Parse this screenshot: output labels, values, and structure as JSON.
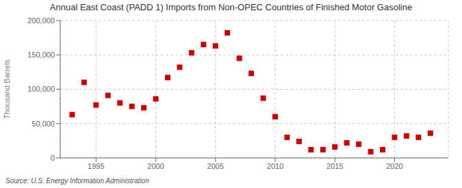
{
  "chart_data": {
    "type": "scatter",
    "title": "Annual East Coast (PADD 1) Imports from Non-OPEC Countries of Finished Motor Gasoline",
    "ylabel": "Thousand Barrels",
    "annotations": [
      "Source: U.S. Energy Information Administration"
    ],
    "x": [
      1993,
      1994,
      1995,
      1996,
      1997,
      1998,
      1999,
      2000,
      2001,
      2002,
      2003,
      2004,
      2005,
      2006,
      2007,
      2008,
      2009,
      2010,
      2011,
      2012,
      2013,
      2014,
      2015,
      2016,
      2017,
      2018,
      2019,
      2020,
      2021,
      2022,
      2023
    ],
    "values": [
      63000,
      110000,
      77000,
      91000,
      80000,
      75000,
      73000,
      86000,
      117000,
      132000,
      153000,
      165000,
      163000,
      182000,
      145000,
      123000,
      87000,
      60000,
      30000,
      24000,
      12000,
      12000,
      16000,
      22000,
      20000,
      9000,
      12000,
      30000,
      32000,
      30000,
      36000
    ],
    "color": "#cc0000",
    "marker": "square",
    "xlim": [
      1992.0,
      2024.5
    ],
    "xticks": [
      1995,
      2000,
      2005,
      2010,
      2015,
      2020
    ],
    "ylim": [
      0,
      200000
    ],
    "yticks": [
      0,
      {
        "value": 50000,
        "label": "50,000"
      },
      {
        "value": 100000,
        "label": "100,000"
      },
      {
        "value": 150000,
        "label": "150,000"
      },
      {
        "value": 200000,
        "label": "200,000"
      }
    ],
    "grid": true
  }
}
